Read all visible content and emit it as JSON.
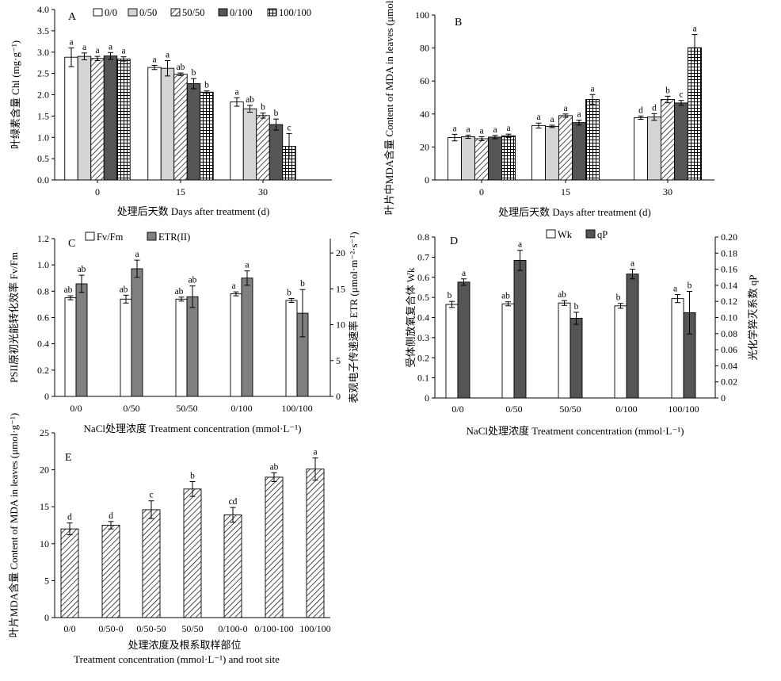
{
  "colors": {
    "white": "#ffffff",
    "light_gray": "#d4d4d4",
    "dark_gray": "#555555",
    "mid_gray": "#808080",
    "black": "#000000"
  },
  "chart_data": [
    {
      "id": "A",
      "panel_label": "A",
      "type": "bar",
      "categories": [
        "0",
        "15",
        "30"
      ],
      "legend": [
        "0/0",
        "0/50",
        "50/50",
        "0/100",
        "100/100"
      ],
      "legend_placement": "top",
      "ylabel": "叶绿素含量 Chl (mg·g⁻¹)",
      "xlabel": "处理后天数 Days after treatment (d)",
      "ylim": [
        0,
        4.0
      ],
      "yticks": [
        "0.0",
        "0.5",
        "1.0",
        "1.5",
        "2.0",
        "2.5",
        "3.0",
        "3.5",
        "4.0"
      ],
      "series": [
        {
          "name": "0/0",
          "fill": "white",
          "values": [
            2.88,
            2.64,
            1.83
          ],
          "err": [
            0.22,
            0.05,
            0.1
          ],
          "sig": [
            "a",
            "a",
            "a"
          ]
        },
        {
          "name": "0/50",
          "fill": "lightgray",
          "values": [
            2.9,
            2.62,
            1.67
          ],
          "err": [
            0.08,
            0.18,
            0.08
          ],
          "sig": [
            "a",
            "a",
            "ab"
          ]
        },
        {
          "name": "50/50",
          "fill": "diag",
          "values": [
            2.85,
            2.48,
            1.51
          ],
          "err": [
            0.05,
            0.03,
            0.06
          ],
          "sig": [
            "a",
            "ab",
            "b"
          ]
        },
        {
          "name": "0/100",
          "fill": "darkgray",
          "values": [
            2.91,
            2.26,
            1.3
          ],
          "err": [
            0.08,
            0.12,
            0.13
          ],
          "sig": [
            "a",
            "b",
            "b"
          ]
        },
        {
          "name": "100/100",
          "fill": "grid",
          "values": [
            2.84,
            2.06,
            0.79
          ],
          "err": [
            0.05,
            0.03,
            0.3
          ],
          "sig": [
            "a",
            "b",
            "c"
          ]
        }
      ]
    },
    {
      "id": "B",
      "panel_label": "B",
      "type": "bar",
      "categories": [
        "0",
        "15",
        "30"
      ],
      "ylabel": "叶片中MDA含量 Content of MDA in leaves (μmol·g⁻¹)",
      "xlabel": "处理后天数 Days after treatment (d)",
      "ylim": [
        0,
        100
      ],
      "yticks": [
        "0",
        "20",
        "40",
        "60",
        "80",
        "100"
      ],
      "series": [
        {
          "name": "0/0",
          "fill": "white",
          "values": [
            25.7,
            33.0,
            37.8
          ],
          "err": [
            2.0,
            1.5,
            1.0
          ],
          "sig": [
            "a",
            "a",
            "d"
          ]
        },
        {
          "name": "0/50",
          "fill": "lightgray",
          "values": [
            26.2,
            32.5,
            38.2
          ],
          "err": [
            1.0,
            0.7,
            2.0
          ],
          "sig": [
            "a",
            "a",
            "d"
          ]
        },
        {
          "name": "50/50",
          "fill": "diag",
          "values": [
            25.0,
            39.0,
            48.8
          ],
          "err": [
            1.2,
            1.0,
            2.0
          ],
          "sig": [
            "a",
            "a",
            "b"
          ]
        },
        {
          "name": "0/100",
          "fill": "darkgray",
          "values": [
            26.0,
            34.8,
            46.7
          ],
          "err": [
            1.0,
            1.5,
            1.5
          ],
          "sig": [
            "a",
            "a",
            "c"
          ]
        },
        {
          "name": "100/100",
          "fill": "grid",
          "values": [
            26.8,
            48.8,
            80.2
          ],
          "err": [
            1.0,
            3.0,
            8.0
          ],
          "sig": [
            "a",
            "a",
            "a"
          ]
        }
      ]
    },
    {
      "id": "C",
      "panel_label": "C",
      "type": "bar",
      "categories": [
        "0/0",
        "0/50",
        "50/50",
        "0/100",
        "100/100"
      ],
      "legend_placement": "top",
      "xlabel": "NaCl处理浓度 Treatment concentration (mmol·L⁻¹)",
      "ylabel_left": "PSII原初光能转化效率 Fv/Fm",
      "ylabel_right": "表观电子传递速率 ETR (μmol·m⁻²·s⁻¹)",
      "ylim_left": [
        0,
        1.2
      ],
      "yticks_left": [
        "0",
        "0.2",
        "0.4",
        "0.6",
        "0.8",
        "1.0",
        "1.2"
      ],
      "ylim_right": [
        0,
        22
      ],
      "yticks_right": [
        "0",
        "5",
        "10",
        "15",
        "20"
      ],
      "series": [
        {
          "name": "Fv/Fm",
          "fill": "white",
          "axis": "left",
          "values": [
            0.75,
            0.74,
            0.74,
            0.78,
            0.73
          ],
          "err": [
            0.015,
            0.03,
            0.015,
            0.015,
            0.015
          ],
          "sig": [
            "ab",
            "ab",
            "ab",
            "a",
            "b"
          ]
        },
        {
          "name": "ETR(II)",
          "fill": "midgray",
          "axis": "right",
          "values": [
            15.7,
            17.8,
            13.9,
            16.5,
            11.6
          ],
          "err": [
            1.2,
            1.2,
            1.5,
            1.0,
            3.3
          ],
          "sig": [
            "ab",
            "a",
            "ab",
            "a",
            "b"
          ]
        }
      ]
    },
    {
      "id": "D",
      "panel_label": "D",
      "type": "bar",
      "categories": [
        "0/0",
        "0/50",
        "50/50",
        "0/100",
        "100/100"
      ],
      "legend_placement": "top",
      "xlabel": "NaCl处理浓度 Treatment concentration (mmol·L⁻¹)",
      "ylabel_left": "受体侧放氧复合体 Wk",
      "ylabel_right": "光化学猝灭系数 qP",
      "ylim_left": [
        0,
        0.8
      ],
      "yticks_left": [
        "0",
        "0.1",
        "0.2",
        "0.3",
        "0.4",
        "0.5",
        "0.6",
        "0.7",
        "0.8"
      ],
      "ylim_right": [
        0,
        0.2
      ],
      "yticks_right": [
        "0",
        "0.02",
        "0.04",
        "0.06",
        "0.08",
        "0.10",
        "0.12",
        "0.14",
        "0.16",
        "0.18",
        "0.20"
      ],
      "series": [
        {
          "name": "Wk",
          "fill": "white",
          "axis": "left",
          "values": [
            0.465,
            0.468,
            0.472,
            0.458,
            0.494
          ],
          "err": [
            0.015,
            0.01,
            0.012,
            0.012,
            0.02
          ],
          "sig": [
            "b",
            "ab",
            "ab",
            "b",
            "a"
          ]
        },
        {
          "name": "qP",
          "fill": "darkgray",
          "axis": "right",
          "values": [
            0.144,
            0.171,
            0.099,
            0.154,
            0.106
          ],
          "err": [
            0.004,
            0.0125,
            0.0075,
            0.006,
            0.0265
          ],
          "sig": [
            "a",
            "a",
            "b",
            "a",
            "b"
          ]
        }
      ]
    },
    {
      "id": "E",
      "panel_label": "E",
      "type": "bar",
      "categories": [
        "0/0",
        "0/50-0",
        "0/50-50",
        "50/50",
        "0/100-0",
        "0/100-100",
        "100/100"
      ],
      "ylabel": "叶片MDA含量 Content of MDA in leaves (μmol·g⁻¹)",
      "xlabel": "处理浓度及根系取样部位",
      "xlabel2": "Treatment concentration (mmol·L⁻¹) and root site",
      "ylim": [
        0,
        25
      ],
      "yticks": [
        "0",
        "5",
        "10",
        "15",
        "20",
        "25"
      ],
      "series": [
        {
          "name": "",
          "fill": "diag",
          "values": [
            12.0,
            12.5,
            14.6,
            17.4,
            13.9,
            19.0,
            20.1
          ],
          "err": [
            0.8,
            0.5,
            1.2,
            1.0,
            1.0,
            0.6,
            1.5
          ],
          "sig": [
            "d",
            "d",
            "c",
            "b",
            "cd",
            "ab",
            "a"
          ]
        }
      ]
    }
  ]
}
